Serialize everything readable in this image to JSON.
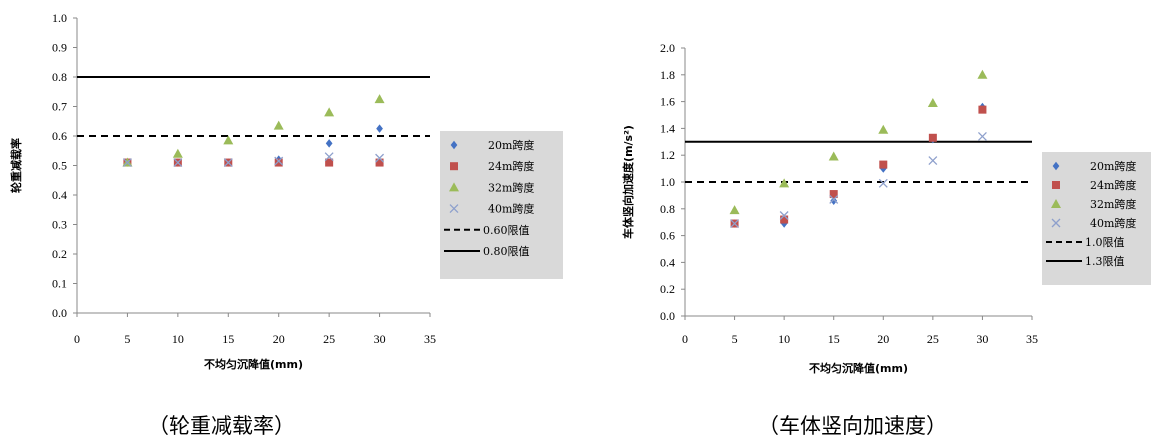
{
  "chart_data": [
    {
      "type": "scatter",
      "title": "",
      "xlabel": "不均匀沉降值(mm)",
      "ylabel": "轮重减载率",
      "xlim": [
        0,
        35
      ],
      "ylim": [
        0,
        1.0
      ],
      "xticks": [
        "0",
        "5",
        "10",
        "15",
        "20",
        "25",
        "30",
        "35"
      ],
      "yticks": [
        "0.0",
        "0.1",
        "0.2",
        "0.3",
        "0.4",
        "0.5",
        "0.6",
        "0.7",
        "0.8",
        "0.9",
        "1.0"
      ],
      "grid": false,
      "legend_position": "right",
      "series": [
        {
          "name": "20m跨度",
          "marker": "diamond",
          "color": "#4472C4",
          "x": [
            5,
            10,
            15,
            20,
            25,
            30
          ],
          "y": [
            0.51,
            0.51,
            0.51,
            0.52,
            0.575,
            0.625
          ]
        },
        {
          "name": "24m跨度",
          "marker": "square",
          "color": "#C0504D",
          "x": [
            5,
            10,
            15,
            20,
            25,
            30
          ],
          "y": [
            0.51,
            0.51,
            0.51,
            0.51,
            0.51,
            0.51
          ]
        },
        {
          "name": "32m跨度",
          "marker": "triangle",
          "color": "#9BBB59",
          "x": [
            5,
            10,
            15,
            20,
            25,
            30
          ],
          "y": [
            0.51,
            0.54,
            0.585,
            0.635,
            0.68,
            0.725
          ]
        },
        {
          "name": "40m跨度",
          "marker": "x",
          "color": "#8EA0CC",
          "x": [
            5,
            10,
            15,
            20,
            25,
            30
          ],
          "y": [
            0.51,
            0.51,
            0.51,
            0.515,
            0.53,
            0.525
          ]
        }
      ],
      "reference_lines": [
        {
          "name": "0.60限值",
          "y": 0.6,
          "style": "dashed"
        },
        {
          "name": "0.80限值",
          "y": 0.8,
          "style": "solid"
        }
      ]
    },
    {
      "type": "scatter",
      "title": "",
      "xlabel": "不均匀沉降值(mm)",
      "ylabel": "车体竖向加速度(m/s²)",
      "xlim": [
        0,
        35
      ],
      "ylim": [
        0,
        2.0
      ],
      "xticks": [
        "0",
        "5",
        "10",
        "15",
        "20",
        "25",
        "30",
        "35"
      ],
      "yticks": [
        "0.0",
        "0.2",
        "0.4",
        "0.6",
        "0.8",
        "1.0",
        "1.2",
        "1.4",
        "1.6",
        "1.8",
        "2.0"
      ],
      "grid": false,
      "legend_position": "right",
      "series": [
        {
          "name": "20m跨度",
          "marker": "diamond",
          "color": "#4472C4",
          "x": [
            5,
            10,
            15,
            20,
            25,
            30
          ],
          "y": [
            0.69,
            0.69,
            0.86,
            1.1,
            1.32,
            1.56
          ]
        },
        {
          "name": "24m跨度",
          "marker": "square",
          "color": "#C0504D",
          "x": [
            5,
            10,
            15,
            20,
            25,
            30
          ],
          "y": [
            0.69,
            0.72,
            0.91,
            1.13,
            1.33,
            1.54
          ]
        },
        {
          "name": "32m跨度",
          "marker": "triangle",
          "color": "#9BBB59",
          "x": [
            5,
            10,
            15,
            20,
            25,
            30
          ],
          "y": [
            0.79,
            0.99,
            1.19,
            1.39,
            1.59,
            1.8
          ]
        },
        {
          "name": "40m跨度",
          "marker": "x",
          "color": "#8EA0CC",
          "x": [
            5,
            10,
            15,
            20,
            25,
            30
          ],
          "y": [
            0.69,
            0.75,
            0.87,
            0.99,
            1.16,
            1.34
          ]
        }
      ],
      "reference_lines": [
        {
          "name": "1.0限值",
          "y": 1.0,
          "style": "dashed"
        },
        {
          "name": "1.3限值",
          "y": 1.3,
          "style": "solid"
        }
      ]
    }
  ],
  "captions": [
    "（轮重减载率）",
    "（车体竖向加速度）"
  ]
}
